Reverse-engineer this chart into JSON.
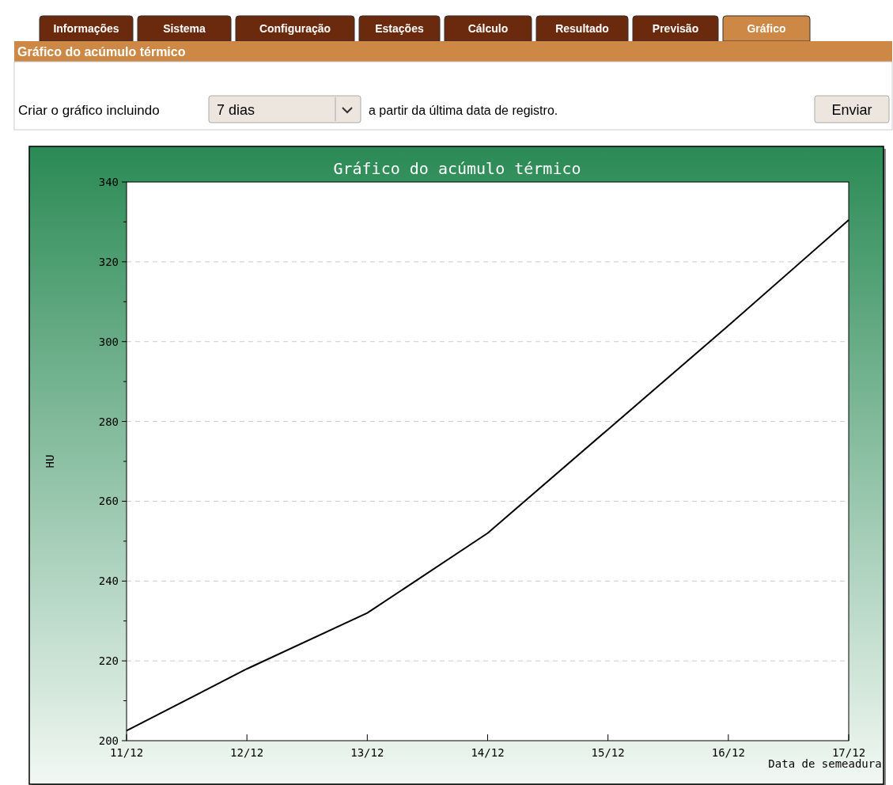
{
  "chart_data": {
    "type": "line",
    "title": "Gráfico do acúmulo térmico",
    "xlabel": "Data de semeadura",
    "ylabel": "HU",
    "categories": [
      "11/12",
      "12/12",
      "13/12",
      "14/12",
      "15/12",
      "16/12",
      "17/12"
    ],
    "series": [
      {
        "color": "#000000",
        "values": [
          202.5,
          218,
          232,
          252,
          278,
          304,
          330.5
        ]
      }
    ],
    "ylim": [
      200,
      340
    ],
    "yticks": [
      200,
      {
        "value": 210,
        "label": null
      },
      220,
      {
        "value": 230,
        "label": null
      },
      240,
      {
        "value": 250,
        "label": null
      },
      260,
      {
        "value": 270,
        "label": null
      },
      280,
      {
        "value": 290,
        "label": null
      },
      300,
      {
        "value": 310,
        "label": null
      },
      320,
      {
        "value": 330,
        "label": null
      },
      340
    ],
    "grid": "y",
    "marker": "none",
    "line_style": "solid",
    "annotations": [
      "Informações",
      "Sistema",
      "Configuração",
      "Estações",
      "Cálculo",
      "Resultado",
      "Previsão",
      "Gráfico",
      "Gráfico do acúmulo térmico",
      "Criar o gráfico incluindo",
      "7 dias",
      "a partir da última data de registro.",
      "Enviar"
    ]
  }
}
